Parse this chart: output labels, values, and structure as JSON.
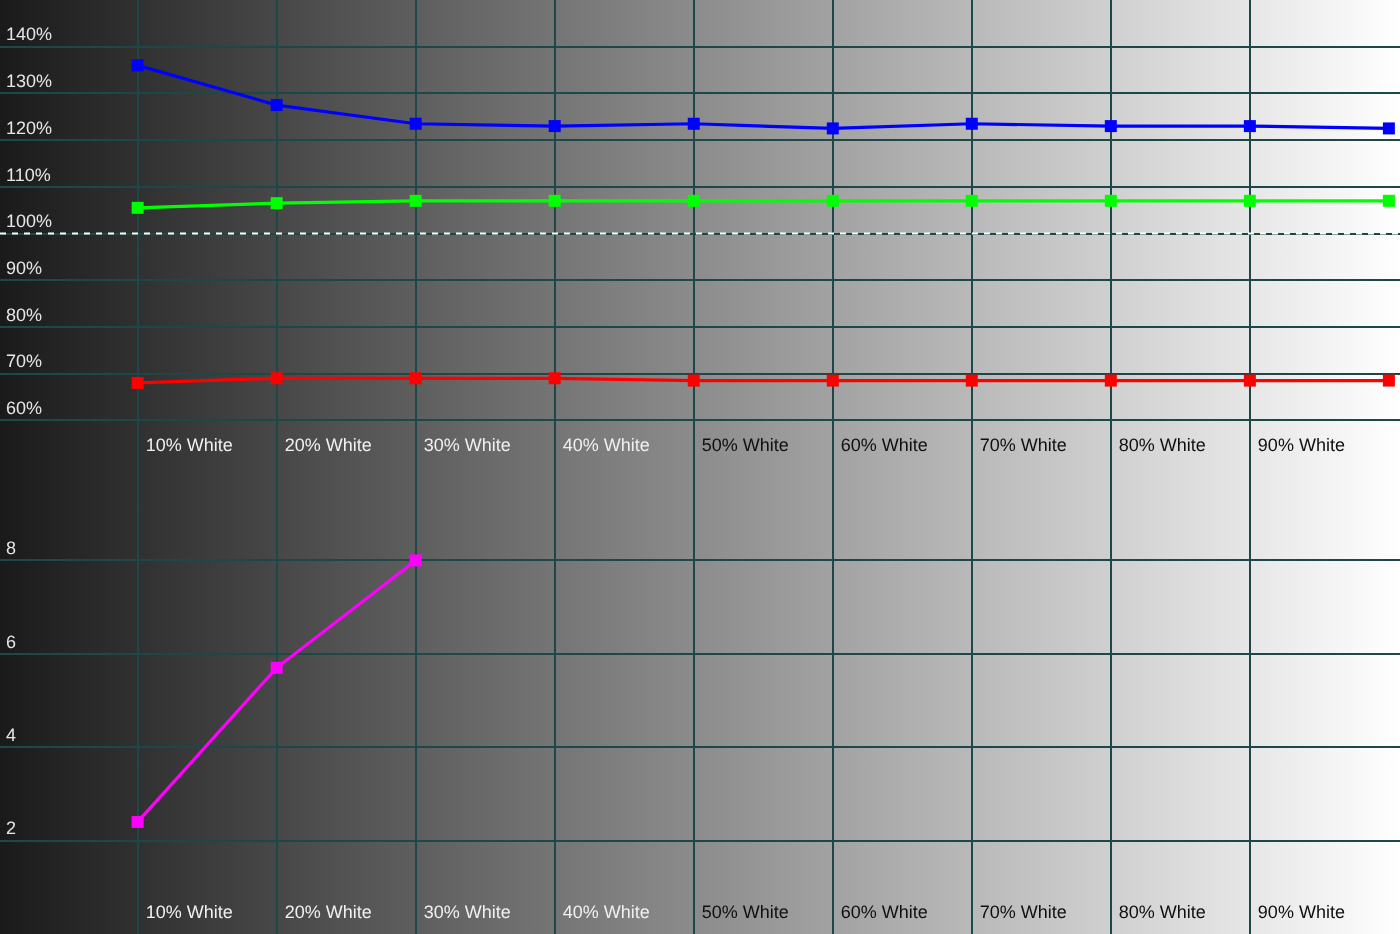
{
  "chart_data": [
    {
      "type": "line",
      "categories": [
        "10% White",
        "20% White",
        "30% White",
        "40% White",
        "50% White",
        "60% White",
        "70% White",
        "80% White",
        "90% White",
        null
      ],
      "series": [
        {
          "color": "#0000ff",
          "values": [
            136,
            127.5,
            123.5,
            123,
            123.5,
            122.5,
            123.5,
            123,
            123,
            122.5
          ]
        },
        {
          "color": "#00ff00",
          "values": [
            105.5,
            106.5,
            107,
            107,
            107,
            107,
            107,
            107,
            107,
            107
          ]
        },
        {
          "color": "#ff0000",
          "values": [
            68,
            69,
            69,
            69,
            68.5,
            68.5,
            68.5,
            68.5,
            68.5,
            68.5
          ]
        }
      ],
      "ylim": [
        50,
        150
      ],
      "yticks": [
        {
          "value": 60,
          "label": "60%"
        },
        {
          "value": 70,
          "label": "70%"
        },
        {
          "value": 80,
          "label": "80%"
        },
        {
          "value": 90,
          "label": "90%"
        },
        {
          "value": 100,
          "label": "100%"
        },
        {
          "value": 110,
          "label": "110%"
        },
        {
          "value": 120,
          "label": "120%"
        },
        {
          "value": 130,
          "label": "130%"
        },
        {
          "value": 140,
          "label": "140%"
        }
      ],
      "grid": true,
      "marker": "square",
      "line_style": "solid",
      "ref_lines": [
        {
          "axis": "y",
          "value": 100,
          "color": "#ffffff",
          "line_style": "dotted"
        }
      ]
    },
    {
      "type": "line",
      "categories": [
        "10% White",
        "20% White",
        "30% White",
        "40% White",
        "50% White",
        "60% White",
        "70% White",
        "80% White",
        "90% White",
        null
      ],
      "series": [
        {
          "color": "#ff00ff",
          "values": [
            2.4,
            5.7,
            8.0,
            null,
            null,
            null,
            null,
            null,
            null,
            null
          ]
        }
      ],
      "ylim": [
        0,
        10
      ],
      "yticks": [
        2,
        4,
        6,
        8
      ],
      "grid": true,
      "marker": "square",
      "line_style": "solid"
    }
  ]
}
